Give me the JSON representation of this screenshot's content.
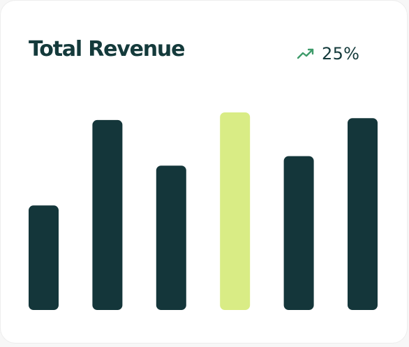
{
  "card": {
    "title": "Total Revenue",
    "trend": {
      "icon": "trending-up-icon",
      "value": "25%",
      "color": "#3e9b6a"
    }
  },
  "chart_data": {
    "type": "bar",
    "values": [
      55,
      100,
      76,
      104,
      81,
      101
    ],
    "highlight_index": 3,
    "ylim": [
      0,
      104
    ],
    "colors": {
      "bar": "#14363a",
      "highlight": "#d9ec85"
    },
    "grid": false,
    "legend": "none"
  }
}
